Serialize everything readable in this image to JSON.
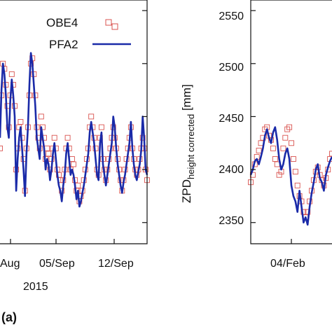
{
  "chart_data": [
    {
      "type": "line",
      "panel_label": "(a)",
      "x_tick_labels": [
        "Aug",
        "05/Sep",
        "12/Sep"
      ],
      "year_label": "2015",
      "legend": [
        "OBE4",
        "PFA2"
      ],
      "legend_position": "top-right",
      "grid": false,
      "series": [
        {
          "name": "OBE4",
          "style": "hollow-square-markers",
          "color": "#d9534f",
          "x": [
            0,
            1,
            2,
            3,
            4,
            5,
            6,
            7,
            8,
            9,
            10,
            11,
            12,
            13,
            14,
            15,
            16,
            17,
            18,
            19,
            20,
            21,
            22,
            23,
            24,
            25,
            26,
            27,
            28,
            29,
            30,
            31,
            32,
            33,
            34,
            35,
            36,
            37,
            38,
            39,
            40,
            41,
            42,
            43,
            44,
            45,
            46,
            47,
            48,
            49,
            50,
            51,
            52,
            53,
            54,
            55,
            56,
            57,
            58,
            59,
            60,
            61,
            62,
            63,
            64,
            65,
            66,
            67,
            68,
            69,
            70,
            71,
            72,
            73,
            74,
            75,
            76,
            77,
            78,
            79,
            80,
            81,
            82,
            83,
            84,
            85,
            86,
            87,
            88,
            89,
            90,
            91,
            92,
            93,
            94,
            95,
            96,
            97,
            98,
            99,
            100
          ],
          "y": [
            2420,
            2470,
            2500,
            2495,
            2480,
            2460,
            2440,
            2470,
            2490,
            2480,
            2460,
            2400,
            2420,
            2440,
            2445,
            2430,
            2410,
            2380,
            2420,
            2440,
            2470,
            2500,
            2505,
            2490,
            2470,
            2440,
            2430,
            2420,
            2450,
            2440,
            2430,
            2410,
            2420,
            2415,
            2400,
            2410,
            2420,
            2430,
            2420,
            2400,
            2395,
            2390,
            2380,
            2390,
            2400,
            2420,
            2430,
            2420,
            2400,
            2410,
            2405,
            2390,
            2380,
            2385,
            2370,
            2375,
            2380,
            2390,
            2400,
            2410,
            2420,
            2440,
            2450,
            2440,
            2430,
            2420,
            2400,
            2395,
            2430,
            2440,
            2410,
            2400,
            2390,
            2400,
            2410,
            2420,
            2430,
            2440,
            2430,
            2420,
            2410,
            2400,
            2390,
            2380,
            2390,
            2400,
            2410,
            2420,
            2430,
            2440,
            2420,
            2410,
            2400,
            2395,
            2400,
            2410,
            2420,
            2430,
            2420,
            2400,
            2390
          ]
        },
        {
          "name": "PFA2",
          "style": "line",
          "color": "#1a2aa8",
          "x": [
            0,
            1,
            2,
            3,
            4,
            5,
            6,
            7,
            8,
            9,
            10,
            11,
            12,
            13,
            14,
            15,
            16,
            17,
            18,
            19,
            20,
            21,
            22,
            23,
            24,
            25,
            26,
            27,
            28,
            29,
            30,
            31,
            32,
            33,
            34,
            35,
            36,
            37,
            38,
            39,
            40,
            41,
            42,
            43,
            44,
            45,
            46,
            47,
            48,
            49,
            50,
            51,
            52,
            53,
            54,
            55,
            56,
            57,
            58,
            59,
            60,
            61,
            62,
            63,
            64,
            65,
            66,
            67,
            68,
            69,
            70,
            71,
            72,
            73,
            74,
            75,
            76,
            77,
            78,
            79,
            80,
            81,
            82,
            83,
            84,
            85,
            86,
            87,
            88,
            89,
            90,
            91,
            92,
            93,
            94,
            95,
            96,
            97,
            98,
            99,
            100
          ],
          "y": [
            2430,
            2475,
            2500,
            2490,
            2470,
            2440,
            2430,
            2465,
            2485,
            2470,
            2450,
            2380,
            2410,
            2430,
            2440,
            2420,
            2400,
            2375,
            2415,
            2440,
            2480,
            2510,
            2500,
            2480,
            2460,
            2430,
            2420,
            2410,
            2440,
            2430,
            2420,
            2400,
            2410,
            2405,
            2390,
            2400,
            2415,
            2425,
            2410,
            2395,
            2385,
            2380,
            2370,
            2385,
            2395,
            2415,
            2425,
            2410,
            2395,
            2400,
            2395,
            2385,
            2372,
            2380,
            2365,
            2370,
            2378,
            2385,
            2395,
            2405,
            2415,
            2435,
            2445,
            2435,
            2425,
            2410,
            2395,
            2390,
            2425,
            2435,
            2405,
            2395,
            2385,
            2395,
            2405,
            2415,
            2425,
            2450,
            2440,
            2420,
            2405,
            2395,
            2385,
            2378,
            2388,
            2395,
            2405,
            2415,
            2425,
            2445,
            2420,
            2405,
            2395,
            2390,
            2398,
            2405,
            2418,
            2450,
            2430,
            2400,
            2395
          ]
        }
      ]
    },
    {
      "type": "line",
      "ylabel": "ZPD",
      "ylabel_sub": "height corrected",
      "ylabel_unit": " [mm]",
      "yticks": [
        2350,
        2400,
        2450,
        2500,
        2550
      ],
      "ylim": [
        2330,
        2560
      ],
      "x_tick_labels": [
        "04/Feb"
      ],
      "grid": false,
      "series": [
        {
          "name": "OBE4",
          "style": "hollow-square-markers",
          "color": "#d9534f",
          "x": [
            0,
            1,
            2,
            3,
            4,
            5,
            6,
            7,
            8,
            9,
            10,
            11,
            12,
            13,
            14,
            15,
            16,
            17,
            18,
            19,
            20,
            21,
            22,
            23,
            24,
            25,
            26,
            27,
            28,
            29,
            30,
            31,
            32,
            33,
            34,
            35,
            36,
            37,
            38,
            39,
            40
          ],
          "y": [
            2388,
            2395,
            2405,
            2412,
            2418,
            2425,
            2430,
            2438,
            2440,
            2432,
            2428,
            2420,
            2410,
            2405,
            2395,
            2398,
            2420,
            2430,
            2438,
            2440,
            2425,
            2410,
            2398,
            2385,
            2375,
            2370,
            2360,
            2355,
            2360,
            2370,
            2380,
            2390,
            2398,
            2402,
            2395,
            2390,
            2385,
            2392,
            2400,
            2410,
            2415
          ]
        },
        {
          "name": "PFA2",
          "style": "line",
          "color": "#1a2aa8",
          "x": [
            0,
            1,
            2,
            3,
            4,
            5,
            6,
            7,
            8,
            9,
            10,
            11,
            12,
            13,
            14,
            15,
            16,
            17,
            18,
            19,
            20,
            21,
            22,
            23,
            24,
            25,
            26,
            27,
            28,
            29,
            30,
            31,
            32,
            33,
            34,
            35,
            36,
            37,
            38,
            39,
            40
          ],
          "y": [
            2395,
            2400,
            2408,
            2410,
            2405,
            2412,
            2420,
            2432,
            2438,
            2430,
            2425,
            2435,
            2440,
            2428,
            2410,
            2400,
            2405,
            2415,
            2420,
            2410,
            2385,
            2375,
            2370,
            2360,
            2380,
            2365,
            2350,
            2355,
            2348,
            2365,
            2378,
            2388,
            2400,
            2405,
            2392,
            2388,
            2380,
            2395,
            2402,
            2408,
            2412
          ]
        }
      ]
    }
  ]
}
